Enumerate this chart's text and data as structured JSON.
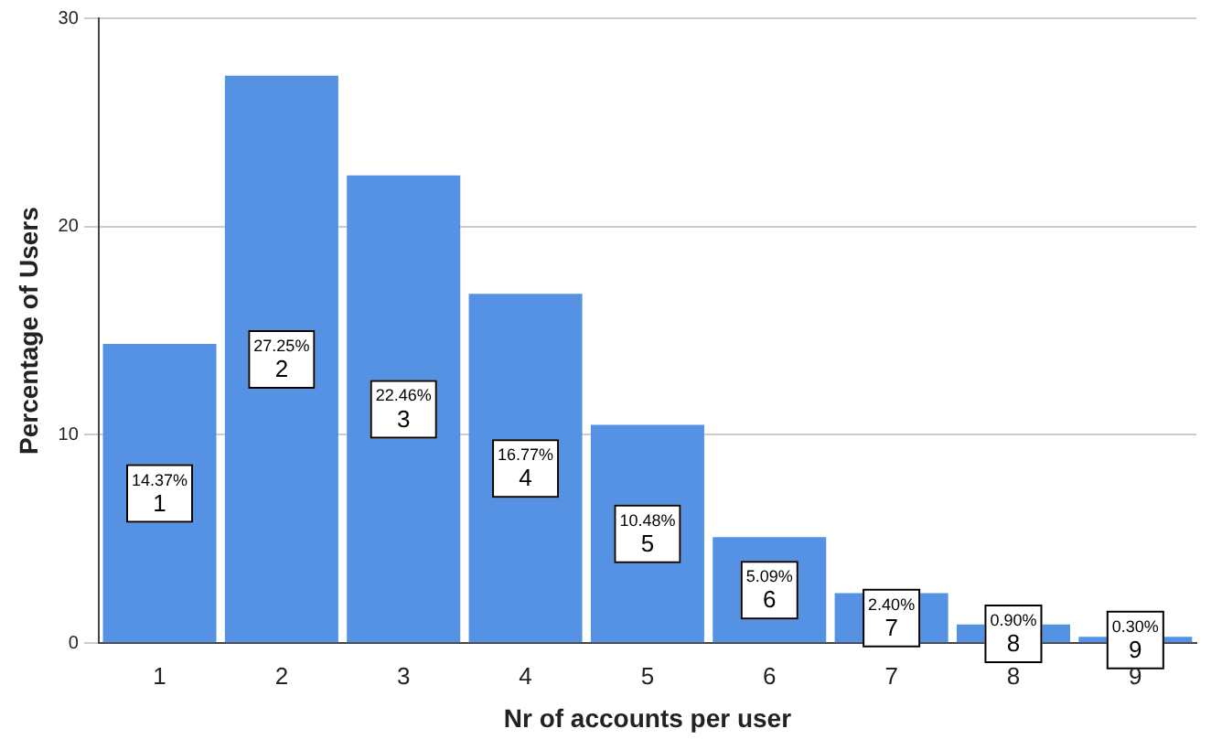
{
  "chart_data": {
    "type": "bar",
    "xlabel": "Nr of accounts per user",
    "ylabel": "Percentage of Users",
    "categories": [
      "1",
      "2",
      "3",
      "4",
      "5",
      "6",
      "7",
      "8",
      "9"
    ],
    "values": [
      14.37,
      27.25,
      22.46,
      16.77,
      10.48,
      5.09,
      2.4,
      0.9,
      0.3
    ],
    "value_labels": [
      "14.37%",
      "27.25%",
      "22.46%",
      "16.77%",
      "10.48%",
      "5.09%",
      "2.40%",
      "0.90%",
      "0.30%"
    ],
    "color": "#5592e3",
    "ylim": [
      0,
      30
    ],
    "yticks": [
      0,
      10,
      20,
      30
    ],
    "grid": "y",
    "legend": false
  }
}
